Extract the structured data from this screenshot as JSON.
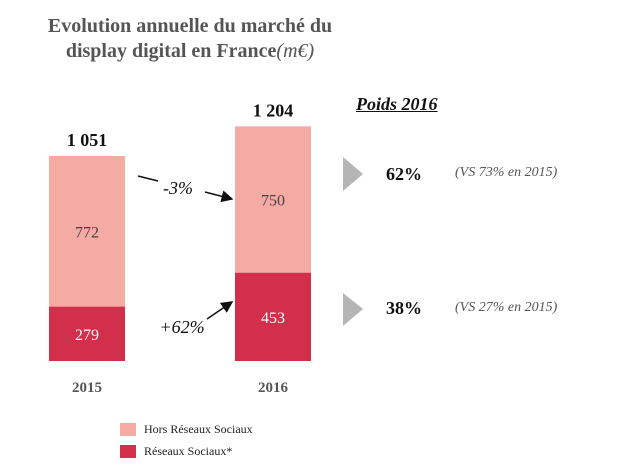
{
  "title": {
    "line1": "Evolution annuelle du marché du",
    "line2": "display digital en France",
    "unit": "(m€)"
  },
  "chart_data": {
    "type": "bar",
    "stacked": true,
    "categories": [
      "2015",
      "2016"
    ],
    "series": [
      {
        "name": "Réseaux Sociaux*",
        "values": [
          279,
          453
        ],
        "color": "#d12f4b"
      },
      {
        "name": "Hors Réseaux Sociaux",
        "values": [
          772,
          750
        ],
        "color": "#f4aba3"
      }
    ],
    "totals": [
      "1 051",
      "1 204"
    ],
    "growth_labels": {
      "top": "-3%",
      "bottom": "+62%"
    }
  },
  "weights": {
    "header": "Poids 2016",
    "rows": [
      {
        "share": "62%",
        "comparison": "(VS 73% en 2015)"
      },
      {
        "share": "38%",
        "comparison": "(VS 27% en 2015)"
      }
    ]
  },
  "legend": [
    {
      "label": "Hors Réseaux Sociaux",
      "color": "#f4aba3"
    },
    {
      "label": "Réseaux Sociaux*",
      "color": "#d12f4b"
    }
  ]
}
